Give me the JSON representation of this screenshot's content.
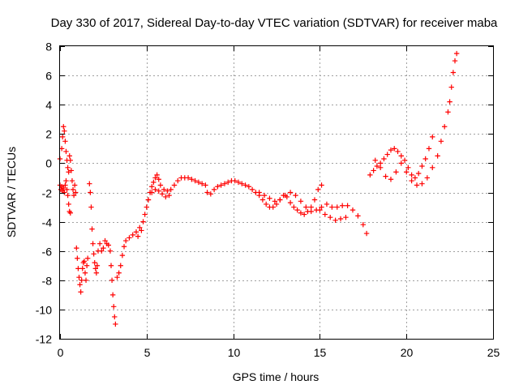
{
  "chart_data": {
    "type": "scatter",
    "title": "Day 330 of 2017, Sidereal Day-to-day VTEC variation (SDTVAR) for receiver maba",
    "xlabel": "GPS time / hours",
    "ylabel": "SDTVAR / TECUs",
    "xlim": [
      0,
      25
    ],
    "ylim": [
      -12,
      8
    ],
    "x_ticks": [
      0,
      5,
      10,
      15,
      20,
      25
    ],
    "y_ticks": [
      -12,
      -10,
      -8,
      -6,
      -4,
      -2,
      0,
      2,
      4,
      6,
      8
    ],
    "grid": true,
    "marker": "plus",
    "color": "#ff0000",
    "series_segments": [
      {
        "x": [
          0.0,
          0.1,
          0.15,
          0.2,
          0.25,
          0.3,
          0.35,
          0.4,
          0.45,
          0.5,
          0.55,
          0.6,
          0.65,
          0.7,
          0.75,
          0.8,
          0.85,
          0.9
        ],
        "y": [
          0.3,
          1.0,
          1.8,
          2.5,
          2.2,
          1.5,
          0.8,
          0.2,
          -0.3,
          -0.6,
          0.5,
          0.2,
          -0.5,
          -1.2,
          -1.8,
          -2.2,
          -1.5,
          -2.0
        ]
      },
      {
        "x": [
          0.0,
          0.05,
          0.1,
          0.15,
          0.2,
          0.25,
          0.3,
          0.35,
          0.4,
          0.45,
          0.5,
          0.55,
          0.6
        ],
        "y": [
          -1.5,
          -1.8,
          -1.6,
          -1.9,
          -1.7,
          -2.0,
          -1.5,
          -1.2,
          -1.8,
          -2.2,
          -2.8,
          -3.3,
          -3.4
        ]
      },
      {
        "x": [
          0.95,
          1.0,
          1.05,
          1.1,
          1.15,
          1.2,
          1.25,
          1.3,
          1.35,
          1.4,
          1.45,
          1.5,
          1.55,
          1.6
        ],
        "y": [
          -5.8,
          -6.5,
          -7.2,
          -7.8,
          -8.3,
          -8.8,
          -8.0,
          -7.2,
          -6.8,
          -6.7,
          -7.5,
          -8.0,
          -7.0,
          -6.5
        ]
      },
      {
        "x": [
          1.7,
          1.75,
          1.8,
          1.85,
          1.9,
          1.95,
          2.0,
          2.05,
          2.1,
          2.15,
          2.2,
          2.3,
          2.4,
          2.5,
          2.6,
          2.7,
          2.8
        ],
        "y": [
          -1.4,
          -2.0,
          -3.0,
          -4.5,
          -5.5,
          -6.2,
          -6.8,
          -7.2,
          -7.5,
          -7.0,
          -6.0,
          -5.5,
          -6.0,
          -5.8,
          -5.3,
          -5.5,
          -5.6
        ]
      },
      {
        "x": [
          2.9,
          2.95,
          3.0,
          3.05,
          3.1,
          3.15,
          3.2
        ],
        "y": [
          -6.0,
          -7.0,
          -8.0,
          -9.0,
          -9.8,
          -10.5,
          -11.0
        ]
      },
      {
        "x": [
          3.3,
          3.4,
          3.5,
          3.6,
          3.7,
          3.8,
          4.0,
          4.2,
          4.4,
          4.6,
          4.8,
          5.0,
          5.1,
          5.2,
          5.3,
          5.4,
          5.5,
          5.6,
          5.7,
          5.8,
          6.0,
          6.2,
          6.4,
          6.6,
          6.8,
          7.0,
          7.2,
          7.4,
          7.6,
          7.8,
          8.0,
          8.2,
          8.4
        ],
        "y": [
          -7.8,
          -7.5,
          -7.0,
          -6.3,
          -5.7,
          -5.3,
          -5.1,
          -4.9,
          -4.7,
          -4.4,
          -4.0,
          -3.0,
          -2.5,
          -2.0,
          -1.6,
          -1.3,
          -1.0,
          -0.8,
          -1.1,
          -1.5,
          -1.8,
          -1.9,
          -1.8,
          -1.5,
          -1.2,
          -1.0,
          -1.0,
          -1.0,
          -1.1,
          -1.2,
          -1.3,
          -1.4,
          -1.5
        ]
      },
      {
        "x": [
          4.5,
          4.7,
          4.9,
          5.1,
          5.3,
          5.5,
          5.7,
          5.9,
          6.1,
          6.3
        ],
        "y": [
          -5.0,
          -4.6,
          -3.5,
          -2.5,
          -2.0,
          -1.8,
          -1.9,
          -2.1,
          -2.3,
          -2.2
        ]
      },
      {
        "x": [
          8.5,
          8.7,
          8.9,
          9.1,
          9.3,
          9.5,
          9.7,
          9.9,
          10.1,
          10.3,
          10.5,
          10.7,
          10.9,
          11.1,
          11.3,
          11.5,
          11.7,
          11.9,
          12.1,
          12.3,
          12.5,
          12.7,
          12.9,
          13.1,
          13.3,
          13.5,
          13.7,
          13.9,
          14.1,
          14.3,
          14.5,
          14.7,
          14.9,
          15.1
        ],
        "y": [
          -2.0,
          -2.1,
          -1.8,
          -1.6,
          -1.5,
          -1.4,
          -1.3,
          -1.2,
          -1.2,
          -1.3,
          -1.4,
          -1.5,
          -1.6,
          -1.8,
          -2.0,
          -2.2,
          -2.5,
          -2.8,
          -3.0,
          -3.0,
          -2.8,
          -2.5,
          -2.2,
          -2.3,
          -2.7,
          -3.0,
          -3.2,
          -3.4,
          -3.5,
          -3.3,
          -3.0,
          -2.5,
          -1.8,
          -1.5
        ]
      },
      {
        "x": [
          11.5,
          11.8,
          12.1,
          12.4,
          12.7,
          13.0,
          13.3,
          13.6,
          13.9,
          14.2,
          14.5,
          14.8,
          15.1,
          15.4,
          15.7,
          16.0,
          16.3,
          16.6,
          16.9,
          17.2,
          17.5,
          17.7
        ],
        "y": [
          -2.0,
          -2.2,
          -2.4,
          -2.6,
          -2.5,
          -2.2,
          -2.0,
          -2.2,
          -2.6,
          -3.0,
          -3.3,
          -3.2,
          -3.0,
          -2.8,
          -3.0,
          -3.0,
          -2.9,
          -2.9,
          -3.2,
          -3.6,
          -4.2,
          -4.8
        ]
      },
      {
        "x": [
          15.0,
          15.3,
          15.6,
          15.9,
          16.2,
          16.5
        ],
        "y": [
          -3.2,
          -3.5,
          -3.7,
          -3.9,
          -3.8,
          -3.7
        ]
      },
      {
        "x": [
          17.9,
          18.1,
          18.3,
          18.5,
          18.7,
          18.9,
          19.1,
          19.3,
          19.5,
          19.7,
          19.9,
          20.1,
          20.3,
          20.5,
          20.7,
          20.9,
          21.1,
          21.3,
          21.5
        ],
        "y": [
          -0.8,
          -0.5,
          -0.2,
          0.0,
          0.3,
          0.6,
          0.9,
          1.0,
          0.8,
          0.5,
          0.2,
          -0.3,
          -0.8,
          -1.0,
          -0.7,
          -0.2,
          0.3,
          1.0,
          1.8
        ]
      },
      {
        "x": [
          18.2,
          18.5,
          18.8,
          19.1,
          19.4,
          19.7,
          20.0,
          20.3,
          20.6,
          20.9,
          21.2,
          21.5,
          21.8,
          22.0,
          22.2,
          22.4,
          22.5,
          22.6,
          22.7,
          22.8,
          22.9
        ],
        "y": [
          0.2,
          -0.3,
          -0.9,
          -1.1,
          -0.6,
          0.0,
          -0.6,
          -1.2,
          -1.5,
          -1.4,
          -1.0,
          -0.3,
          0.5,
          1.5,
          2.5,
          3.5,
          4.2,
          5.2,
          6.2,
          7.0,
          7.5
        ]
      }
    ]
  }
}
